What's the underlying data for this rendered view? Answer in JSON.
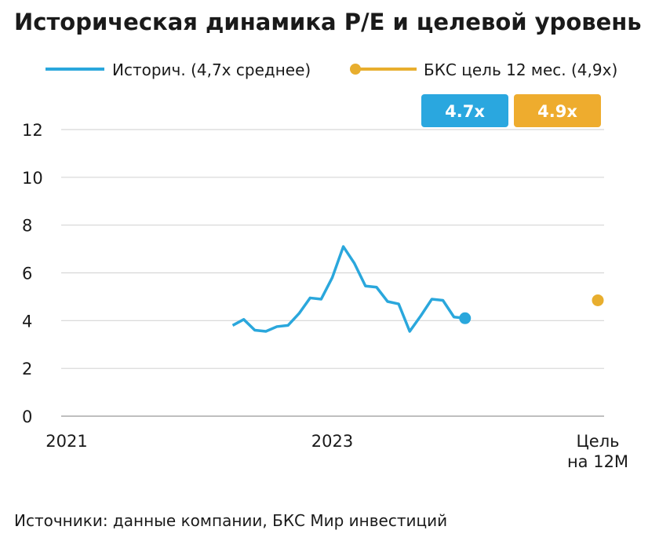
{
  "chart_data": {
    "type": "line",
    "title": "Историческая динамика P/E и целевой уровень",
    "source": "Источники: данные компании, БКС Мир инвестиций",
    "categories": [
      "2021",
      null,
      null,
      null,
      null,
      null,
      null,
      null,
      null,
      null,
      null,
      null,
      null,
      null,
      null,
      null,
      null,
      null,
      null,
      null,
      null,
      null,
      null,
      null,
      "2023",
      null,
      null,
      null,
      null,
      null,
      null,
      null,
      null,
      null,
      null,
      null,
      null,
      null,
      null,
      null,
      null,
      null,
      null,
      null,
      null,
      null,
      null,
      null,
      "Цель на 12М"
    ],
    "series": [
      {
        "name": "Историч. (4,7x среднее)",
        "color": "#2aa7dc",
        "values": [
          null,
          null,
          null,
          null,
          null,
          null,
          null,
          null,
          null,
          null,
          null,
          null,
          null,
          null,
          null,
          3.8,
          4.05,
          3.6,
          3.55,
          3.75,
          3.8,
          4.3,
          4.95,
          4.9,
          5.8,
          7.1,
          6.4,
          5.45,
          5.4,
          4.8,
          4.7,
          3.55,
          4.2,
          4.9,
          4.85,
          4.15,
          4.1,
          null,
          null,
          null,
          null,
          null,
          null,
          null,
          null,
          null,
          null,
          null,
          null
        ]
      },
      {
        "name": "БКС цель 12 мес. (4,9x)",
        "color": "#e8ae2e",
        "values": [
          null,
          null,
          null,
          null,
          null,
          null,
          null,
          null,
          null,
          null,
          null,
          null,
          null,
          null,
          null,
          null,
          null,
          null,
          null,
          null,
          null,
          null,
          null,
          null,
          null,
          null,
          null,
          null,
          null,
          null,
          null,
          null,
          null,
          null,
          null,
          null,
          4.1,
          null,
          null,
          null,
          null,
          null,
          null,
          null,
          null,
          null,
          null,
          null,
          4.85
        ]
      }
    ],
    "badges": [
      {
        "label": "4.7x",
        "color": "#2aa7df"
      },
      {
        "label": "4.9x",
        "color": "#eeac2e"
      }
    ],
    "ylim": [
      0,
      12
    ],
    "yticks": [
      0,
      2,
      4,
      6,
      8,
      10,
      12
    ],
    "grid": true
  }
}
